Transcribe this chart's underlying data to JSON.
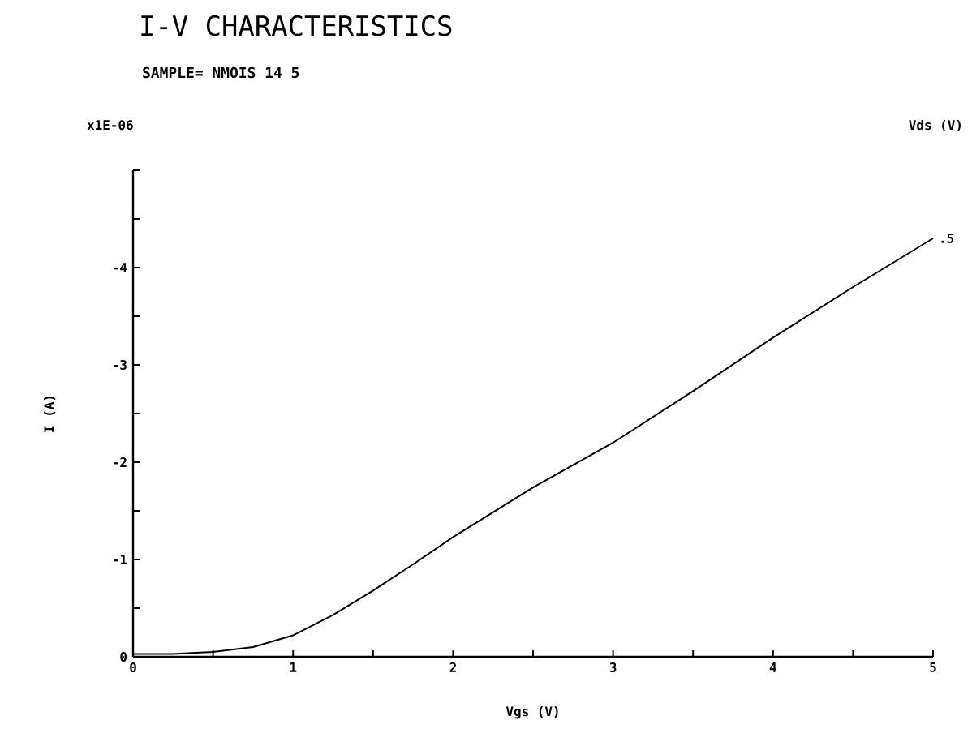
{
  "chart_data": {
    "type": "line",
    "title": "I-V CHARACTERISTICS",
    "subtitle": "SAMPLE= NMOIS 14 5",
    "xlabel": "Vgs (V)",
    "ylabel": "I (A)",
    "annotations": [
      "x1E-06",
      "Vds (V)"
    ],
    "x": [
      0,
      0.25,
      0.5,
      0.75,
      1,
      1.25,
      1.5,
      1.75,
      2,
      2.5,
      3,
      3.5,
      4,
      4.5,
      5
    ],
    "series": [
      {
        "name": ".5",
        "color": "#000000",
        "values": [
          -0.03,
          -0.03,
          -0.05,
          -0.1,
          -0.22,
          -0.43,
          -0.68,
          -0.95,
          -1.23,
          -1.74,
          -2.2,
          -2.73,
          -3.28,
          -3.8,
          -4.3
        ]
      }
    ],
    "xlim": [
      0,
      5
    ],
    "xticks": [
      0,
      {
        "value": 0.5,
        "label": null
      },
      1,
      {
        "value": 1.5,
        "label": null
      },
      2,
      {
        "value": 2.5,
        "label": null
      },
      3,
      {
        "value": 3.5,
        "label": null
      },
      4,
      {
        "value": 4.5,
        "label": null
      },
      5
    ],
    "ylim": [
      0,
      -5
    ],
    "yticks": [
      0,
      {
        "value": -0.5,
        "label": null
      },
      -1,
      {
        "value": -1.5,
        "label": null
      },
      -2,
      {
        "value": -2.5,
        "label": null
      },
      -3,
      {
        "value": -3.5,
        "label": null
      },
      -4,
      {
        "value": -4.5,
        "label": null
      },
      {
        "value": -5,
        "label": null
      }
    ],
    "grid": false,
    "legend": false,
    "marker": "none",
    "line_style": "solid"
  }
}
